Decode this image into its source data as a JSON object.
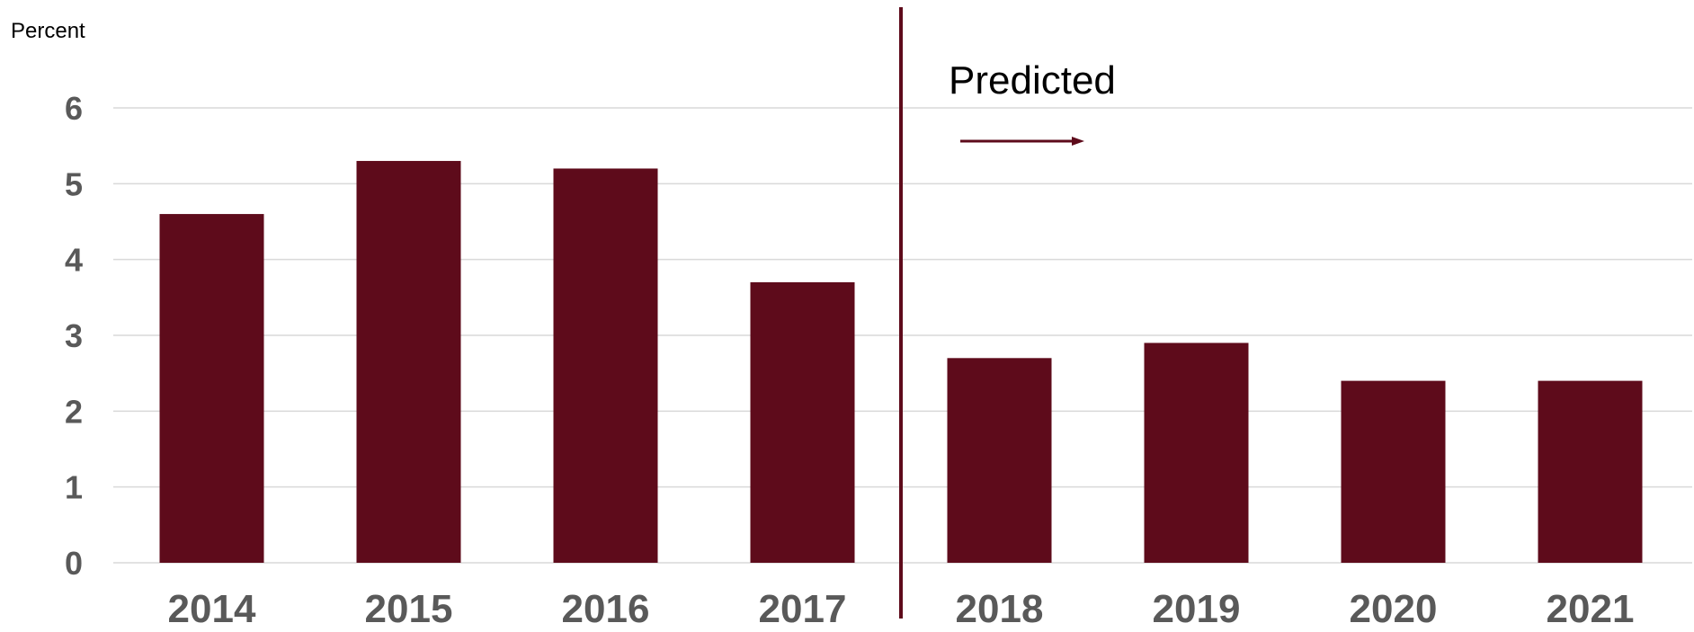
{
  "chart_data": {
    "type": "bar",
    "categories": [
      "2014",
      "2015",
      "2016",
      "2017",
      "2018",
      "2019",
      "2020",
      "2021"
    ],
    "values": [
      4.6,
      5.3,
      5.2,
      3.7,
      2.7,
      2.9,
      2.4,
      2.4
    ],
    "title": "",
    "xlabel": "",
    "ylabel": "Percent",
    "ylim": [
      0,
      6
    ],
    "yticks": [
      0,
      1,
      2,
      3,
      4,
      5,
      6
    ],
    "grid": true,
    "legend": "none",
    "annotations": [
      {
        "text": "Predicted",
        "divider_between": [
          "2017",
          "2018"
        ],
        "arrow": "right"
      }
    ],
    "colors": {
      "bar": "#5e0b1b",
      "divider": "#5e0b1b",
      "grid": "#d9d9d9",
      "tick_text": "#595959",
      "text": "#000000"
    }
  }
}
